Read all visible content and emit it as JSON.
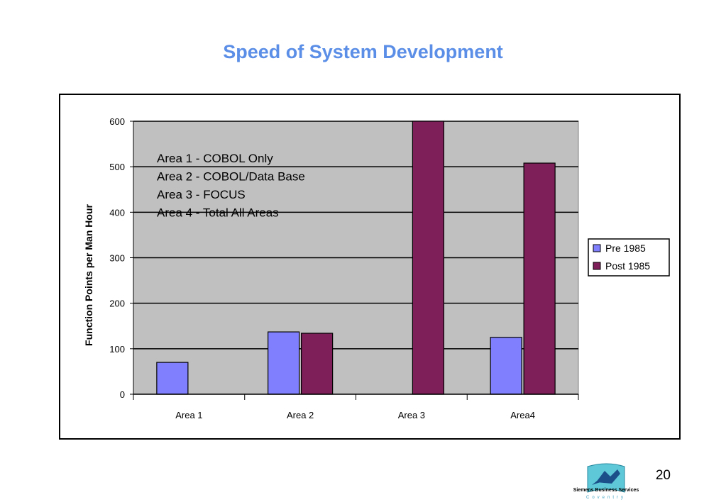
{
  "slide": {
    "title": "Speed of System Development",
    "page_number": "20",
    "company": "Siemens Business Services",
    "company_sub": "Coventry"
  },
  "chart_data": {
    "type": "bar",
    "title": "",
    "categories": [
      "Area 1",
      "Area 2",
      "Area 3",
      "Area4"
    ],
    "series": [
      {
        "name": "Pre 1985",
        "values": [
          70,
          137,
          null,
          125
        ],
        "color": "#8080ff"
      },
      {
        "name": "Post 1985",
        "values": [
          null,
          134,
          600,
          508
        ],
        "color": "#7f1f5a"
      }
    ],
    "xlabel": "",
    "ylabel": "Function Points per Man Hour",
    "ylim": [
      0,
      600
    ],
    "yticks": [
      0,
      100,
      200,
      300,
      400,
      500,
      600
    ],
    "grid": true,
    "plot_background": "#c0c0c0",
    "legend_position": "right",
    "annotations": [
      "Area 1 - COBOL Only",
      "Area 2 - COBOL/Data Base",
      "Area 3 - FOCUS",
      "Area 4 - Total All Areas"
    ]
  }
}
